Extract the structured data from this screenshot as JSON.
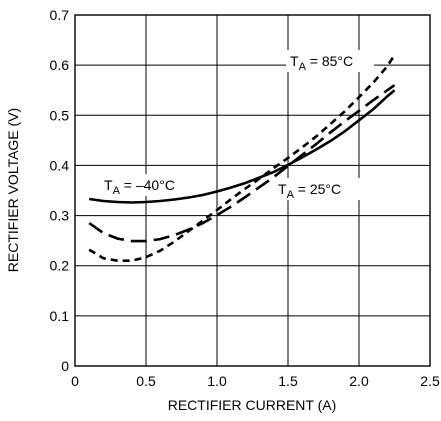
{
  "chart_data": {
    "type": "line",
    "xlabel": "RECTIFIER CURRENT (A)",
    "ylabel": "RECTIFIER VOLTAGE (V)",
    "xlim": [
      0,
      2.5
    ],
    "ylim": [
      0,
      0.7
    ],
    "x_ticks": [
      "0",
      "0.5",
      "1.0",
      "1.5",
      "2.0",
      "2.5"
    ],
    "y_ticks": [
      "0",
      "0.1",
      "0.2",
      "0.3",
      "0.4",
      "0.5",
      "0.6",
      "0.7"
    ],
    "grid": true,
    "series": [
      {
        "style": "solid",
        "x": [
          0.1,
          0.2,
          0.3,
          0.4,
          0.5,
          0.6,
          0.7,
          0.8,
          0.9,
          1.0,
          1.1,
          1.2,
          1.3,
          1.4,
          1.5,
          1.6,
          1.7,
          1.8,
          1.9,
          2.0,
          2.1,
          2.2,
          2.25
        ],
        "y": [
          0.333,
          0.329,
          0.327,
          0.326,
          0.327,
          0.329,
          0.332,
          0.336,
          0.341,
          0.348,
          0.356,
          0.365,
          0.376,
          0.387,
          0.401,
          0.416,
          0.432,
          0.449,
          0.468,
          0.49,
          0.512,
          0.538,
          0.55
        ],
        "label": {
          "T": "T",
          "sub": "A",
          "rest": " = –40°C"
        }
      },
      {
        "style": "long-dash",
        "x": [
          0.1,
          0.2,
          0.3,
          0.4,
          0.5,
          0.6,
          0.7,
          0.8,
          0.9,
          1.0,
          1.1,
          1.2,
          1.3,
          1.4,
          1.5,
          1.6,
          1.7,
          1.8,
          1.9,
          2.0,
          2.1,
          2.2,
          2.25
        ],
        "y": [
          0.285,
          0.265,
          0.254,
          0.249,
          0.249,
          0.253,
          0.261,
          0.272,
          0.285,
          0.301,
          0.318,
          0.337,
          0.357,
          0.377,
          0.399,
          0.421,
          0.443,
          0.466,
          0.488,
          0.509,
          0.53,
          0.55,
          0.56
        ],
        "label": {
          "T": "T",
          "sub": "A",
          "rest": " = 25°C"
        }
      },
      {
        "style": "short-dash",
        "x": [
          0.1,
          0.2,
          0.3,
          0.4,
          0.5,
          0.6,
          0.7,
          0.8,
          0.9,
          1.0,
          1.1,
          1.2,
          1.3,
          1.4,
          1.5,
          1.6,
          1.7,
          1.8,
          1.9,
          2.0,
          2.1,
          2.2,
          2.25
        ],
        "y": [
          0.232,
          0.215,
          0.21,
          0.21,
          0.217,
          0.23,
          0.248,
          0.269,
          0.29,
          0.311,
          0.333,
          0.354,
          0.374,
          0.395,
          0.415,
          0.436,
          0.458,
          0.483,
          0.508,
          0.536,
          0.565,
          0.598,
          0.62
        ],
        "label": {
          "T": "T",
          "sub": "A",
          "rest": " = 85°C"
        }
      }
    ]
  }
}
